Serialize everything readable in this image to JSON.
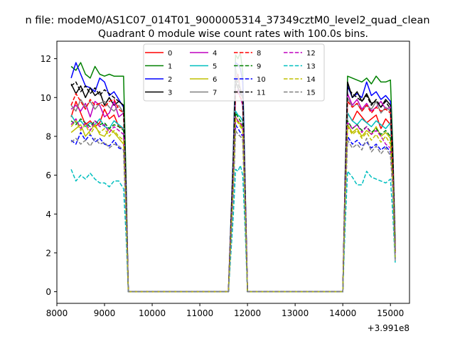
{
  "chart_data": {
    "type": "line",
    "suptitle": "n file: modeM0/AS1C07_014T01_9000005314_37349cztM0_level2_quad_clean",
    "title": "Quadrant 0 module wise count rates with 100.0s bins.",
    "xlabel": "",
    "ylabel": "",
    "x_offset_label": "+3.991e8",
    "xlim": [
      8000,
      15400
    ],
    "ylim": [
      -0.6,
      12.9
    ],
    "x_ticks": [
      8000,
      9000,
      10000,
      11000,
      12000,
      13000,
      14000,
      15000
    ],
    "x_tick_labels": [
      "8000",
      "9000",
      "10000",
      "11000",
      "12000",
      "13000",
      "14000",
      "15000"
    ],
    "y_ticks": [
      0,
      2,
      4,
      6,
      8,
      10,
      12
    ],
    "y_tick_labels": [
      "0",
      "2",
      "4",
      "6",
      "8",
      "10",
      "12"
    ],
    "grid": false,
    "legend_position": "top-center",
    "x": [
      8300,
      8400,
      8500,
      8600,
      8700,
      8800,
      8900,
      9000,
      9100,
      9200,
      9300,
      9400,
      9450,
      9500,
      11600,
      11700,
      11750,
      11800,
      11850,
      11900,
      11950,
      12000,
      12050,
      12100,
      14000,
      14050,
      14100,
      14200,
      14300,
      14400,
      14500,
      14600,
      14700,
      14800,
      14900,
      15000,
      15050,
      15100
    ],
    "series": [
      {
        "name": "0",
        "color": "#ff0000",
        "dash": "solid",
        "values": [
          9.0,
          9.8,
          9.2,
          8.6,
          8.8,
          8.5,
          8.7,
          9.4,
          8.9,
          9.1,
          8.5,
          8.4,
          5.0,
          0,
          0,
          6.0,
          11.0,
          11.2,
          10.4,
          10.1,
          5.2,
          0,
          0,
          0,
          0,
          5.5,
          9.2,
          8.8,
          9.3,
          9.0,
          8.7,
          8.9,
          9.1,
          8.4,
          8.9,
          8.6,
          6.5,
          2.0
        ]
      },
      {
        "name": "1",
        "color": "#008000",
        "dash": "solid",
        "values": [
          11.6,
          11.4,
          11.8,
          11.2,
          11.0,
          11.6,
          11.2,
          11.1,
          11.2,
          11.1,
          11.1,
          11.1,
          6.0,
          0,
          0,
          7.0,
          12.2,
          12.0,
          12.3,
          11.3,
          5.6,
          0,
          0,
          0,
          0,
          6.0,
          11.1,
          11.0,
          10.9,
          10.8,
          11.0,
          10.7,
          11.1,
          10.8,
          10.8,
          10.9,
          7.5,
          2.5
        ]
      },
      {
        "name": "2",
        "color": "#0000ff",
        "dash": "solid",
        "values": [
          11.0,
          11.8,
          11.2,
          10.6,
          10.5,
          10.3,
          11.0,
          10.8,
          10.1,
          10.3,
          9.9,
          9.5,
          5.5,
          0,
          0,
          6.8,
          11.8,
          11.7,
          11.5,
          10.8,
          5.4,
          0,
          0,
          0,
          0,
          5.8,
          10.6,
          10.0,
          10.2,
          10.0,
          10.8,
          10.1,
          10.3,
          9.9,
          10.1,
          9.8,
          7.0,
          2.2
        ]
      },
      {
        "name": "3",
        "color": "#000000",
        "dash": "solid",
        "values": [
          10.7,
          10.2,
          10.6,
          10.0,
          10.5,
          10.1,
          10.3,
          9.6,
          10.0,
          9.6,
          9.8,
          9.6,
          5.2,
          0,
          0,
          6.5,
          10.8,
          10.5,
          10.2,
          10.0,
          5.0,
          0,
          0,
          0,
          0,
          5.5,
          10.8,
          10.0,
          10.3,
          9.8,
          10.2,
          9.7,
          9.8,
          9.5,
          9.9,
          9.6,
          6.8,
          2.1
        ]
      },
      {
        "name": "4",
        "color": "#bf00bf",
        "dash": "solid",
        "values": [
          9.4,
          9.6,
          9.3,
          9.7,
          9.0,
          9.8,
          9.6,
          9.0,
          9.2,
          9.8,
          9.0,
          9.2,
          5.0,
          0,
          0,
          6.2,
          10.2,
          10.4,
          10.0,
          9.6,
          5.0,
          0,
          0,
          0,
          0,
          5.4,
          10.2,
          9.6,
          9.9,
          9.4,
          9.7,
          9.3,
          9.5,
          9.8,
          9.4,
          9.5,
          6.6,
          2.0
        ]
      },
      {
        "name": "5",
        "color": "#00bfbf",
        "dash": "solid",
        "values": [
          9.1,
          8.7,
          8.8,
          8.5,
          8.7,
          8.6,
          8.9,
          8.5,
          8.4,
          8.8,
          8.6,
          8.4,
          4.6,
          0,
          0,
          5.6,
          9.3,
          9.1,
          9.0,
          8.8,
          4.6,
          0,
          0,
          0,
          0,
          5.0,
          9.2,
          8.8,
          8.6,
          8.9,
          8.7,
          8.5,
          8.8,
          8.6,
          8.4,
          8.7,
          6.0,
          1.8
        ]
      },
      {
        "name": "6",
        "color": "#bfbf00",
        "dash": "solid",
        "values": [
          8.2,
          8.4,
          8.6,
          8.0,
          8.3,
          8.6,
          8.1,
          8.0,
          8.4,
          8.2,
          7.9,
          7.6,
          4.3,
          0,
          0,
          5.4,
          9.0,
          8.8,
          8.6,
          8.4,
          4.4,
          0,
          0,
          0,
          0,
          4.8,
          8.6,
          8.2,
          8.4,
          8.0,
          8.3,
          8.1,
          8.5,
          8.0,
          8.2,
          7.9,
          5.8,
          1.7
        ]
      },
      {
        "name": "7",
        "color": "#808080",
        "dash": "solid",
        "values": [
          9.6,
          9.3,
          9.9,
          9.5,
          9.8,
          9.4,
          9.7,
          9.8,
          9.5,
          9.3,
          9.6,
          9.2,
          5.0,
          0,
          0,
          6.3,
          11.5,
          10.9,
          10.5,
          9.9,
          5.0,
          0,
          0,
          0,
          0,
          5.4,
          10.0,
          9.5,
          9.7,
          9.3,
          9.6,
          9.4,
          9.8,
          9.2,
          9.5,
          9.3,
          6.6,
          2.0
        ]
      },
      {
        "name": "8",
        "color": "#ff0000",
        "dash": "dash",
        "values": [
          9.6,
          10.2,
          9.8,
          9.4,
          9.9,
          9.6,
          9.7,
          9.5,
          9.8,
          9.9,
          9.4,
          9.2,
          5.0,
          0,
          0,
          6.2,
          10.4,
          10.2,
          10.0,
          9.8,
          4.9,
          0,
          0,
          0,
          0,
          5.3,
          9.8,
          9.5,
          9.7,
          9.3,
          9.6,
          9.2,
          9.5,
          9.3,
          9.4,
          9.2,
          6.5,
          2.0
        ]
      },
      {
        "name": "9",
        "color": "#008000",
        "dash": "dash",
        "values": [
          8.8,
          8.6,
          8.9,
          8.7,
          8.5,
          8.8,
          8.6,
          8.7,
          8.4,
          8.6,
          8.5,
          8.3,
          4.5,
          0,
          0,
          5.6,
          9.2,
          9.0,
          8.8,
          8.6,
          4.5,
          0,
          0,
          0,
          0,
          5.0,
          8.8,
          8.4,
          8.6,
          8.3,
          8.5,
          8.2,
          8.4,
          8.1,
          8.3,
          8.0,
          5.9,
          1.8
        ]
      },
      {
        "name": "10",
        "color": "#0000ff",
        "dash": "dash",
        "values": [
          7.8,
          7.6,
          8.2,
          7.8,
          8.1,
          7.7,
          7.9,
          7.6,
          7.5,
          7.8,
          7.4,
          7.3,
          4.0,
          0,
          0,
          5.0,
          8.6,
          8.4,
          8.2,
          8.0,
          4.2,
          0,
          0,
          0,
          0,
          4.6,
          8.0,
          7.6,
          7.8,
          7.5,
          7.7,
          7.4,
          7.6,
          7.3,
          7.5,
          7.2,
          5.4,
          1.7
        ]
      },
      {
        "name": "11",
        "color": "#000000",
        "dash": "dash",
        "values": [
          10.6,
          10.8,
          10.3,
          10.6,
          10.2,
          10.5,
          10.1,
          10.4,
          10.2,
          10.0,
          9.8,
          9.6,
          5.2,
          0,
          0,
          6.4,
          11.0,
          10.7,
          10.4,
          10.1,
          5.1,
          0,
          0,
          0,
          0,
          5.6,
          10.5,
          10.2,
          10.0,
          9.8,
          10.1,
          9.6,
          9.9,
          9.5,
          9.8,
          9.4,
          6.8,
          2.1
        ]
      },
      {
        "name": "12",
        "color": "#bf00bf",
        "dash": "dash",
        "values": [
          8.6,
          8.9,
          8.4,
          8.7,
          8.3,
          8.8,
          8.5,
          8.6,
          8.2,
          8.5,
          8.3,
          8.1,
          4.4,
          0,
          0,
          5.5,
          9.0,
          8.8,
          8.7,
          8.5,
          4.4,
          0,
          0,
          0,
          0,
          4.9,
          8.7,
          8.4,
          8.6,
          8.2,
          8.5,
          8.1,
          8.3,
          8.0,
          7.6,
          7.4,
          5.6,
          1.7
        ]
      },
      {
        "name": "13",
        "color": "#00bfbf",
        "dash": "dash",
        "values": [
          6.3,
          5.7,
          6.0,
          5.8,
          6.1,
          5.8,
          5.6,
          5.6,
          5.4,
          5.7,
          5.7,
          5.3,
          3.0,
          0,
          0,
          3.8,
          6.3,
          6.2,
          6.5,
          6.0,
          3.2,
          0,
          0,
          0,
          0,
          3.4,
          6.2,
          5.9,
          5.5,
          5.5,
          6.2,
          5.9,
          5.8,
          5.7,
          5.6,
          5.8,
          4.0,
          1.5
        ]
      },
      {
        "name": "14",
        "color": "#bfbf00",
        "dash": "dash",
        "values": [
          8.5,
          8.8,
          8.3,
          8.6,
          8.1,
          8.5,
          8.2,
          8.4,
          8.0,
          8.3,
          8.0,
          7.8,
          4.2,
          0,
          0,
          5.3,
          8.9,
          8.7,
          8.5,
          8.3,
          4.3,
          0,
          0,
          0,
          0,
          4.7,
          8.5,
          8.1,
          8.3,
          7.9,
          8.2,
          7.8,
          8.1,
          7.7,
          8.0,
          7.6,
          5.6,
          1.7
        ]
      },
      {
        "name": "15",
        "color": "#808080",
        "dash": "dash",
        "values": [
          7.7,
          7.9,
          7.6,
          7.8,
          7.5,
          7.9,
          7.6,
          7.7,
          7.4,
          7.6,
          7.5,
          7.3,
          4.0,
          0,
          0,
          4.9,
          8.3,
          8.1,
          8.0,
          7.8,
          4.0,
          0,
          0,
          0,
          0,
          4.4,
          7.8,
          7.4,
          7.6,
          7.3,
          7.9,
          7.2,
          7.5,
          7.1,
          7.4,
          7.0,
          5.2,
          1.6
        ]
      }
    ]
  }
}
